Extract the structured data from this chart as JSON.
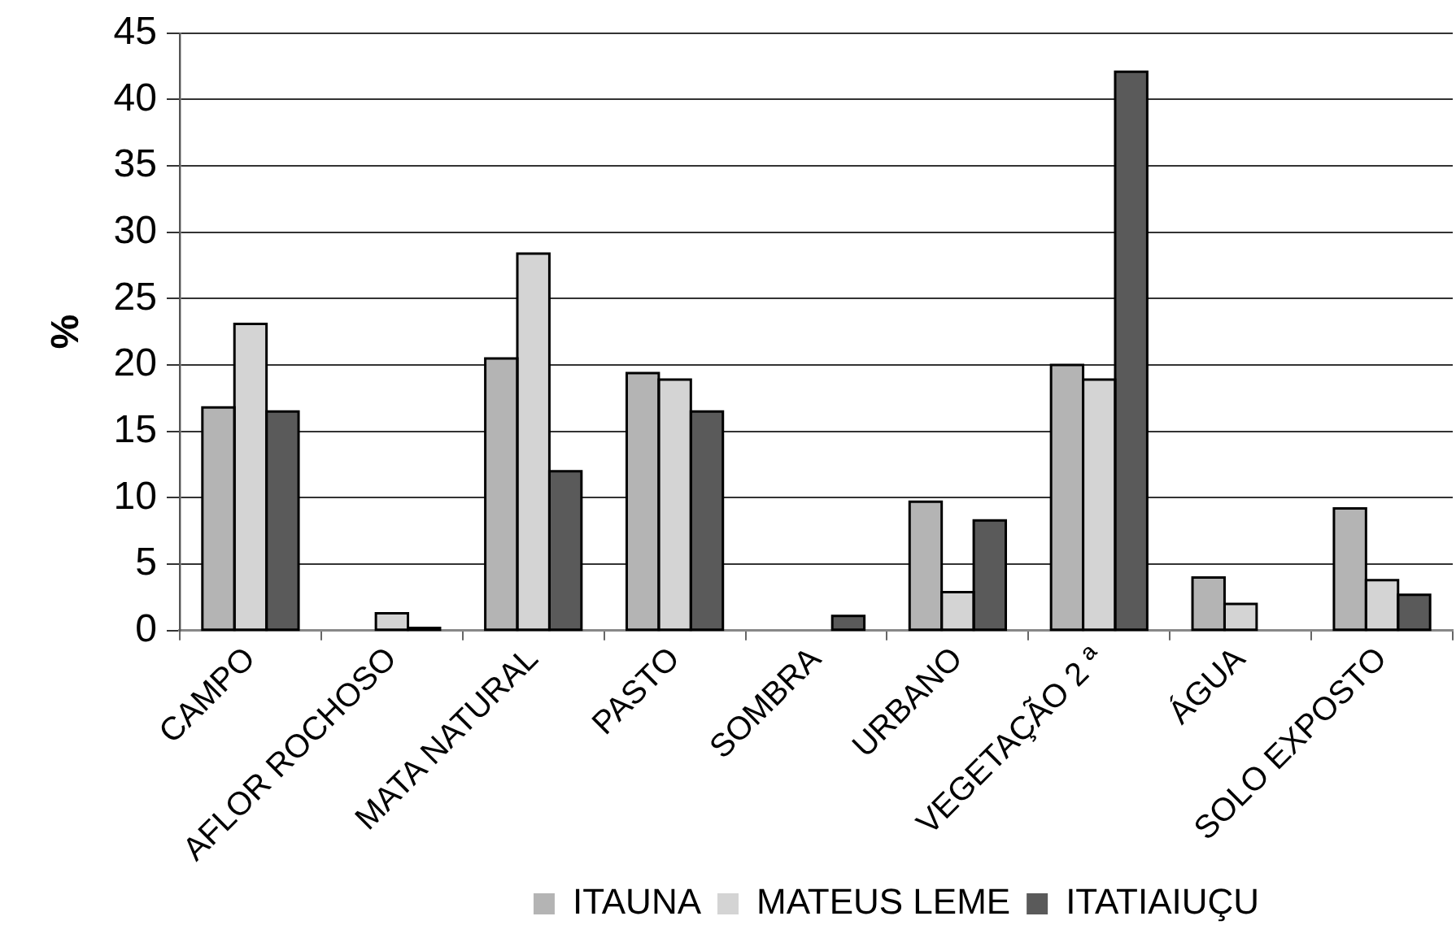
{
  "chart_data": {
    "type": "bar",
    "ylabel": "%",
    "categories": [
      "CAMPO",
      "AFLOR ROCHOSO",
      "MATA NATURAL",
      "PASTO",
      "SOMBRA",
      "URBANO",
      "VEGETAÇÃO 2 ª",
      "ÁGUA",
      "SOLO EXPOSTO"
    ],
    "series": [
      {
        "name": "ITAUNA",
        "color": "#b4b4b4",
        "values": [
          16.8,
          null,
          20.5,
          19.4,
          null,
          9.7,
          20.0,
          4.0,
          9.2
        ]
      },
      {
        "name": "MATEUS LEME",
        "color": "#d4d4d4",
        "values": [
          23.1,
          1.3,
          28.4,
          18.9,
          null,
          2.9,
          18.9,
          2.0,
          3.8
        ]
      },
      {
        "name": "ITATIAIUÇU",
        "color": "#5a5a5a",
        "values": [
          16.5,
          0.2,
          12.0,
          16.5,
          1.1,
          8.3,
          42.1,
          null,
          2.7
        ]
      }
    ],
    "ylim": [
      0,
      45
    ],
    "yticks": [
      0,
      5,
      10,
      15,
      20,
      25,
      30,
      35,
      40,
      45
    ],
    "grid": "y",
    "legend": "bottom"
  }
}
